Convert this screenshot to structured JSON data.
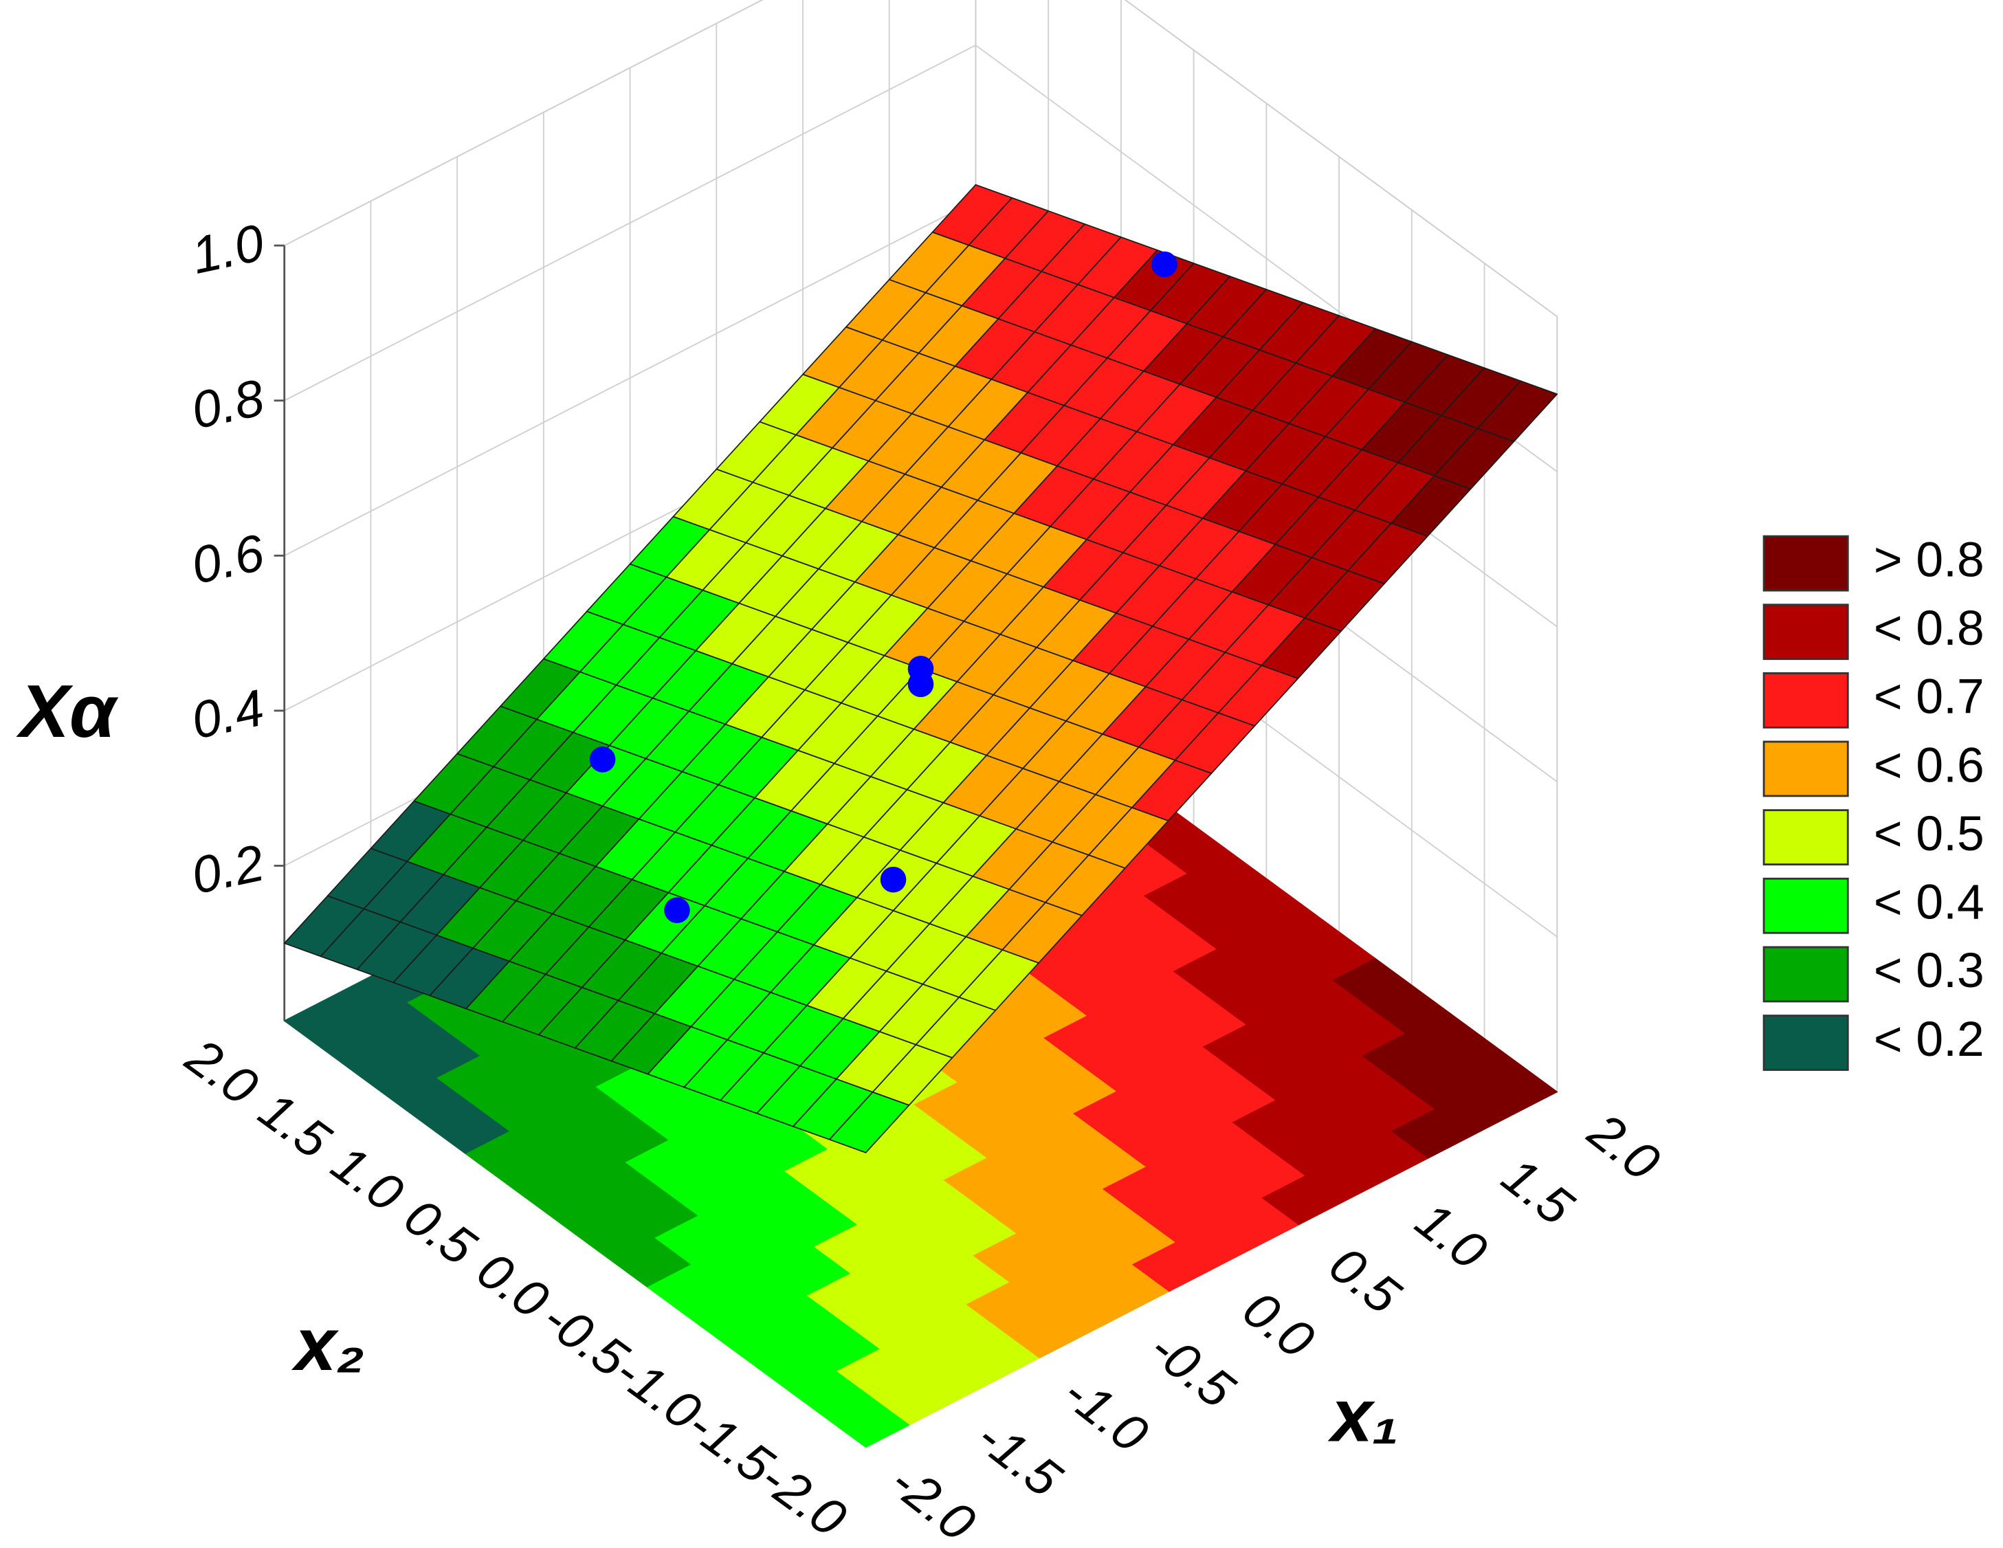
{
  "chart_data": {
    "type": "surface3d",
    "z_label": "Xα",
    "x1_label": "x₁",
    "x2_label": "x₂",
    "x1": [
      -2,
      -1,
      0,
      1,
      2
    ],
    "x2": [
      -2,
      -1,
      0,
      1,
      2
    ],
    "z": [
      [
        0.38,
        0.51,
        0.64,
        0.77,
        0.9
      ],
      [
        0.31,
        0.44,
        0.57,
        0.7,
        0.83
      ],
      [
        0.24,
        0.37,
        0.5,
        0.63,
        0.76
      ],
      [
        0.17,
        0.3,
        0.43,
        0.56,
        0.69
      ],
      [
        0.1,
        0.23,
        0.36,
        0.49,
        0.62
      ]
    ],
    "x1lim": [
      -2,
      2
    ],
    "x2lim": [
      -2,
      2
    ],
    "zlim": [
      0,
      1
    ],
    "x1ticks": [
      {
        "value": -2,
        "label": "-2.0"
      },
      {
        "value": -1.5,
        "label": "-1.5"
      },
      {
        "value": -1,
        "label": "-1.0"
      },
      {
        "value": -0.5,
        "label": "-0.5"
      },
      {
        "value": 0,
        "label": "0.0"
      },
      {
        "value": 0.5,
        "label": "0.5"
      },
      {
        "value": 1,
        "label": "1.0"
      },
      {
        "value": 1.5,
        "label": "1.5"
      },
      {
        "value": 2,
        "label": "2.0"
      }
    ],
    "x2ticks": [
      {
        "value": -2,
        "label": "-2.0"
      },
      {
        "value": -1.5,
        "label": "-1.5"
      },
      {
        "value": -1,
        "label": "-1.0"
      },
      {
        "value": -0.5,
        "label": "-0.5"
      },
      {
        "value": 0,
        "label": "0.0"
      },
      {
        "value": 0.5,
        "label": "0.5"
      },
      {
        "value": 1,
        "label": "1.0"
      },
      {
        "value": 1.5,
        "label": "1.5"
      },
      {
        "value": 2,
        "label": "2.0"
      }
    ],
    "zticks": [
      0.2,
      0.4,
      0.6,
      0.8,
      {
        "value": 1,
        "label": "1.0"
      }
    ],
    "contour_levels": [
      0.2,
      0.3,
      0.4,
      0.5,
      0.6,
      0.7,
      0.8
    ],
    "legend": [
      {
        "label": "> 0.8",
        "color": "#7a0000"
      },
      {
        "label": "< 0.8",
        "color": "#b00000"
      },
      {
        "label": "< 0.7",
        "color": "#ff1a1a"
      },
      {
        "label": "< 0.6",
        "color": "#ffa500"
      },
      {
        "label": "< 0.5",
        "color": "#ccff00"
      },
      {
        "label": "< 0.4",
        "color": "#00ff00"
      },
      {
        "label": "< 0.3",
        "color": "#00aa00"
      },
      {
        "label": "< 0.2",
        "color": "#0a5c4a"
      }
    ],
    "points": {
      "color": "#0000ff",
      "x1": [
        0,
        0,
        -1,
        -1.41,
        -1,
        1.41
      ],
      "x2": [
        0,
        0,
        1,
        0,
        -1,
        0
      ],
      "z": [
        0.5,
        0.48,
        0.36,
        0.35,
        0.48,
        0.86
      ]
    },
    "floor_projection": true,
    "grid": true
  }
}
